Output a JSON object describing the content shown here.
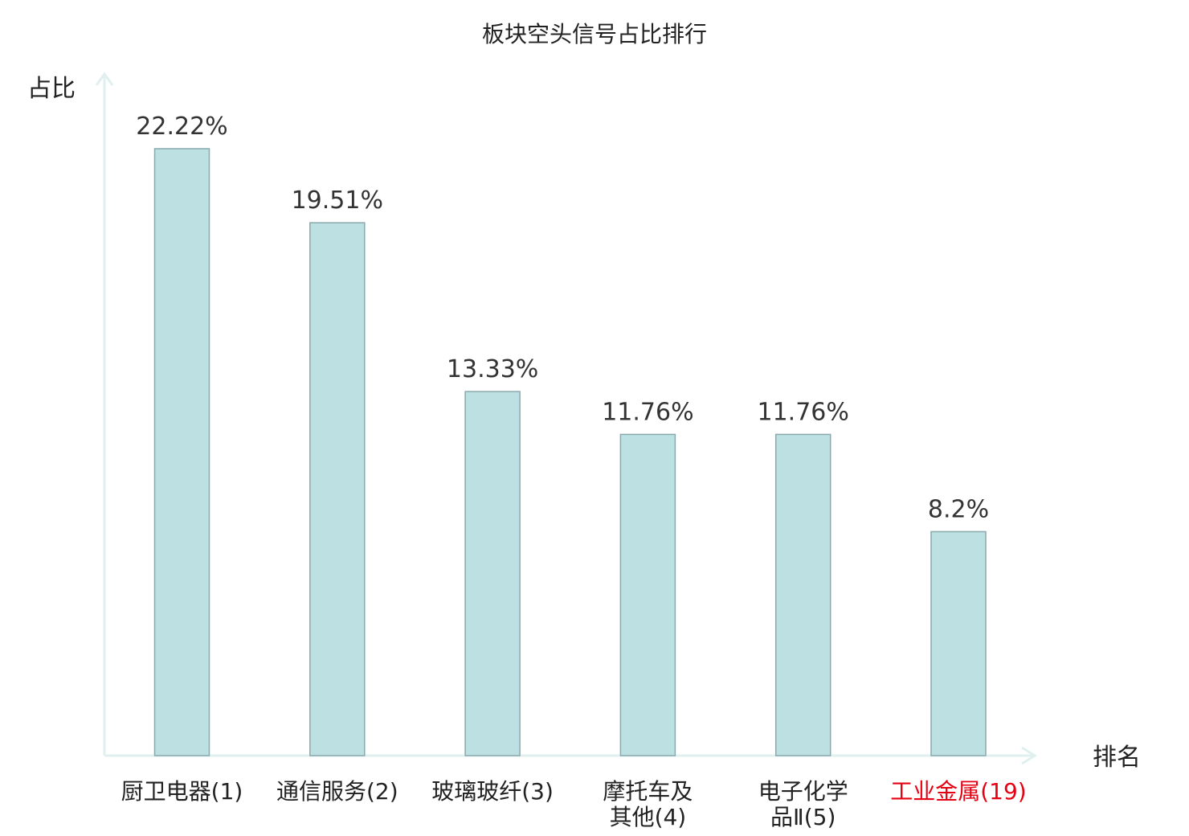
{
  "chart_data": {
    "type": "bar",
    "title": "板块空头信号占比排行",
    "ylabel": "占比",
    "xlabel": "排名",
    "categories": [
      {
        "lines": [
          "厨卫电器(1)"
        ],
        "highlight": false
      },
      {
        "lines": [
          "通信服务(2)"
        ],
        "highlight": false
      },
      {
        "lines": [
          "玻璃玻纤(3)"
        ],
        "highlight": false
      },
      {
        "lines": [
          "摩托车及",
          "其他(4)"
        ],
        "highlight": false
      },
      {
        "lines": [
          "电子化学",
          "品Ⅱ(5)"
        ],
        "highlight": false
      },
      {
        "lines": [
          "工业金属(19)"
        ],
        "highlight": true
      }
    ],
    "values": [
      22.22,
      19.51,
      13.33,
      11.76,
      11.76,
      8.2
    ],
    "value_labels": [
      "22.22%",
      "19.51%",
      "13.33%",
      "11.76%",
      "11.76%",
      "8.2%"
    ],
    "ylim": [
      0,
      22.22
    ],
    "grid": false,
    "colors": {
      "bar_fill": "#bde0e3",
      "bar_stroke": "#8aa9ac",
      "axis": "#dff0ee",
      "highlight_label": "#e60012"
    }
  }
}
